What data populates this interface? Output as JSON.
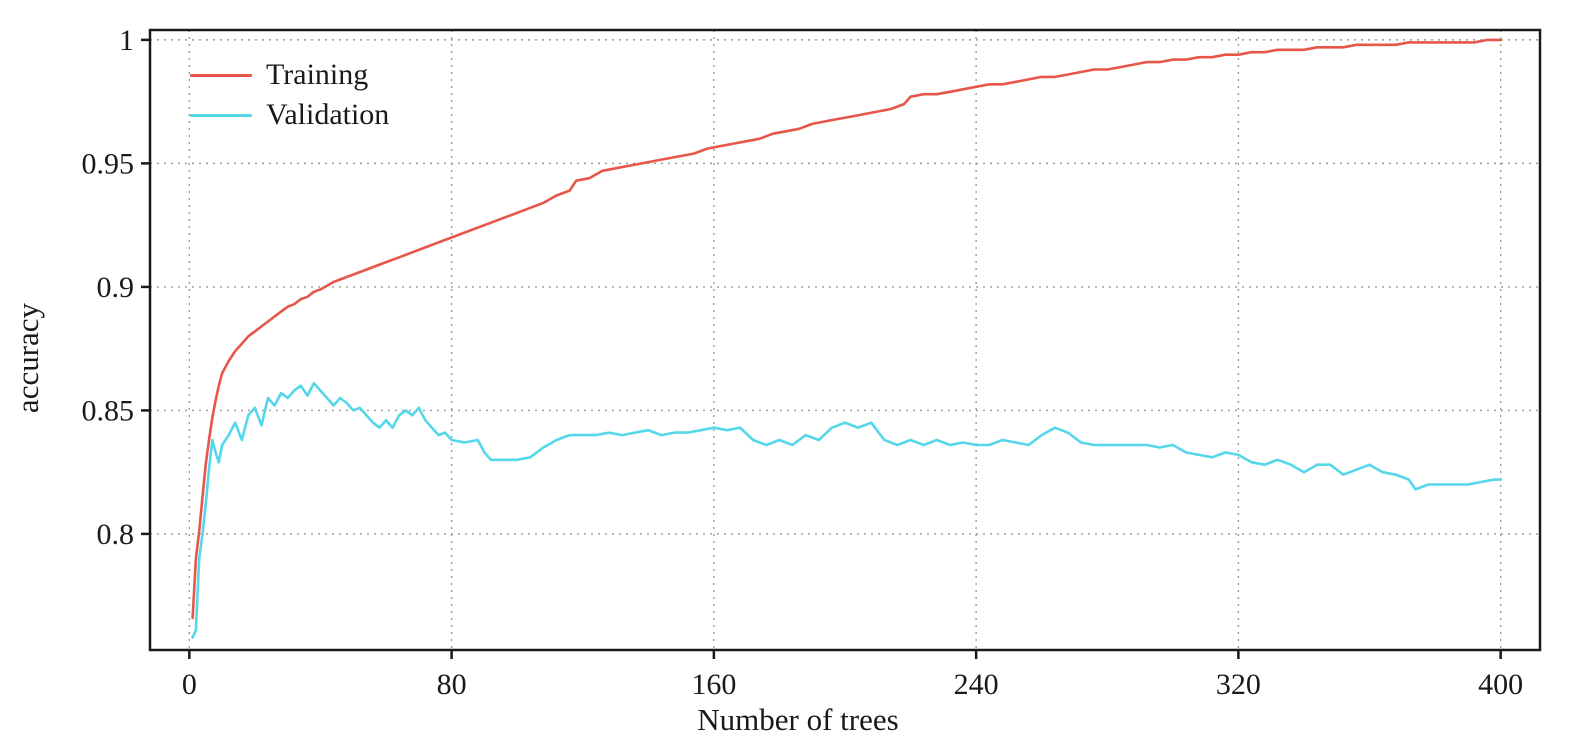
{
  "chart_data": {
    "type": "line",
    "title": "",
    "xlabel": "Number of trees",
    "ylabel": "accuracy",
    "xlim": [
      -12,
      412
    ],
    "ylim": [
      0.753,
      1.004
    ],
    "grid": "dotted",
    "legend_position": "top-left-inside",
    "frame_color": "#1a1a1a",
    "grid_color": "#9a9a9a",
    "xticks": {
      "values": [
        0,
        80,
        160,
        240,
        320,
        400
      ],
      "labels": [
        "0",
        "80",
        "160",
        "240",
        "320",
        "400"
      ]
    },
    "yticks": {
      "values": [
        0.8,
        0.85,
        0.9,
        0.95,
        1.0
      ],
      "labels": [
        "0.8",
        "0.85",
        "0.9",
        "0.95",
        "1"
      ]
    },
    "series": [
      {
        "name": "Training",
        "color": "#e8564a",
        "points": [
          [
            1,
            0.766
          ],
          [
            2,
            0.79
          ],
          [
            3,
            0.801
          ],
          [
            4,
            0.815
          ],
          [
            5,
            0.828
          ],
          [
            6,
            0.838
          ],
          [
            7,
            0.847
          ],
          [
            8,
            0.854
          ],
          [
            9,
            0.86
          ],
          [
            10,
            0.865
          ],
          [
            12,
            0.87
          ],
          [
            14,
            0.874
          ],
          [
            16,
            0.877
          ],
          [
            18,
            0.88
          ],
          [
            20,
            0.882
          ],
          [
            22,
            0.884
          ],
          [
            24,
            0.886
          ],
          [
            26,
            0.888
          ],
          [
            28,
            0.89
          ],
          [
            30,
            0.892
          ],
          [
            32,
            0.893
          ],
          [
            34,
            0.895
          ],
          [
            36,
            0.896
          ],
          [
            38,
            0.898
          ],
          [
            40,
            0.899
          ],
          [
            44,
            0.902
          ],
          [
            48,
            0.904
          ],
          [
            52,
            0.906
          ],
          [
            56,
            0.908
          ],
          [
            60,
            0.91
          ],
          [
            64,
            0.912
          ],
          [
            68,
            0.914
          ],
          [
            72,
            0.916
          ],
          [
            76,
            0.918
          ],
          [
            80,
            0.92
          ],
          [
            84,
            0.922
          ],
          [
            88,
            0.924
          ],
          [
            92,
            0.926
          ],
          [
            96,
            0.928
          ],
          [
            100,
            0.93
          ],
          [
            104,
            0.932
          ],
          [
            108,
            0.934
          ],
          [
            112,
            0.937
          ],
          [
            116,
            0.939
          ],
          [
            118,
            0.943
          ],
          [
            122,
            0.944
          ],
          [
            126,
            0.947
          ],
          [
            130,
            0.948
          ],
          [
            134,
            0.949
          ],
          [
            138,
            0.95
          ],
          [
            142,
            0.951
          ],
          [
            146,
            0.952
          ],
          [
            150,
            0.953
          ],
          [
            154,
            0.954
          ],
          [
            158,
            0.956
          ],
          [
            162,
            0.957
          ],
          [
            166,
            0.958
          ],
          [
            170,
            0.959
          ],
          [
            174,
            0.96
          ],
          [
            178,
            0.962
          ],
          [
            182,
            0.963
          ],
          [
            186,
            0.964
          ],
          [
            190,
            0.966
          ],
          [
            194,
            0.967
          ],
          [
            198,
            0.968
          ],
          [
            202,
            0.969
          ],
          [
            206,
            0.97
          ],
          [
            210,
            0.971
          ],
          [
            214,
            0.972
          ],
          [
            218,
            0.974
          ],
          [
            220,
            0.977
          ],
          [
            224,
            0.978
          ],
          [
            228,
            0.978
          ],
          [
            232,
            0.979
          ],
          [
            236,
            0.98
          ],
          [
            240,
            0.981
          ],
          [
            244,
            0.982
          ],
          [
            248,
            0.982
          ],
          [
            252,
            0.983
          ],
          [
            256,
            0.984
          ],
          [
            260,
            0.985
          ],
          [
            264,
            0.985
          ],
          [
            268,
            0.986
          ],
          [
            272,
            0.987
          ],
          [
            276,
            0.988
          ],
          [
            280,
            0.988
          ],
          [
            284,
            0.989
          ],
          [
            288,
            0.99
          ],
          [
            292,
            0.991
          ],
          [
            296,
            0.991
          ],
          [
            300,
            0.992
          ],
          [
            304,
            0.992
          ],
          [
            308,
            0.993
          ],
          [
            312,
            0.993
          ],
          [
            316,
            0.994
          ],
          [
            320,
            0.994
          ],
          [
            324,
            0.995
          ],
          [
            328,
            0.995
          ],
          [
            332,
            0.996
          ],
          [
            336,
            0.996
          ],
          [
            340,
            0.996
          ],
          [
            344,
            0.997
          ],
          [
            348,
            0.997
          ],
          [
            352,
            0.997
          ],
          [
            356,
            0.998
          ],
          [
            360,
            0.998
          ],
          [
            364,
            0.998
          ],
          [
            368,
            0.998
          ],
          [
            372,
            0.999
          ],
          [
            376,
            0.999
          ],
          [
            380,
            0.999
          ],
          [
            384,
            0.999
          ],
          [
            388,
            0.999
          ],
          [
            392,
            0.999
          ],
          [
            396,
            1.0
          ],
          [
            400,
            1.0
          ]
        ]
      },
      {
        "name": "Validation",
        "color": "#55d7ea",
        "points": [
          [
            1,
            0.758
          ],
          [
            2,
            0.761
          ],
          [
            3,
            0.79
          ],
          [
            4,
            0.8
          ],
          [
            5,
            0.812
          ],
          [
            6,
            0.826
          ],
          [
            7,
            0.838
          ],
          [
            8,
            0.833
          ],
          [
            9,
            0.829
          ],
          [
            10,
            0.836
          ],
          [
            12,
            0.84
          ],
          [
            14,
            0.845
          ],
          [
            16,
            0.838
          ],
          [
            18,
            0.848
          ],
          [
            20,
            0.851
          ],
          [
            22,
            0.844
          ],
          [
            24,
            0.855
          ],
          [
            26,
            0.852
          ],
          [
            28,
            0.857
          ],
          [
            30,
            0.855
          ],
          [
            32,
            0.858
          ],
          [
            34,
            0.86
          ],
          [
            36,
            0.856
          ],
          [
            38,
            0.861
          ],
          [
            40,
            0.858
          ],
          [
            42,
            0.855
          ],
          [
            44,
            0.852
          ],
          [
            46,
            0.855
          ],
          [
            48,
            0.853
          ],
          [
            50,
            0.85
          ],
          [
            52,
            0.851
          ],
          [
            54,
            0.848
          ],
          [
            56,
            0.845
          ],
          [
            58,
            0.843
          ],
          [
            60,
            0.846
          ],
          [
            62,
            0.843
          ],
          [
            64,
            0.848
          ],
          [
            66,
            0.85
          ],
          [
            68,
            0.848
          ],
          [
            70,
            0.851
          ],
          [
            72,
            0.846
          ],
          [
            74,
            0.843
          ],
          [
            76,
            0.84
          ],
          [
            78,
            0.841
          ],
          [
            80,
            0.838
          ],
          [
            84,
            0.837
          ],
          [
            88,
            0.838
          ],
          [
            90,
            0.833
          ],
          [
            92,
            0.83
          ],
          [
            96,
            0.83
          ],
          [
            100,
            0.83
          ],
          [
            104,
            0.831
          ],
          [
            108,
            0.835
          ],
          [
            112,
            0.838
          ],
          [
            116,
            0.84
          ],
          [
            120,
            0.84
          ],
          [
            124,
            0.84
          ],
          [
            128,
            0.841
          ],
          [
            132,
            0.84
          ],
          [
            136,
            0.841
          ],
          [
            140,
            0.842
          ],
          [
            144,
            0.84
          ],
          [
            148,
            0.841
          ],
          [
            152,
            0.841
          ],
          [
            156,
            0.842
          ],
          [
            160,
            0.843
          ],
          [
            164,
            0.842
          ],
          [
            168,
            0.843
          ],
          [
            172,
            0.838
          ],
          [
            176,
            0.836
          ],
          [
            180,
            0.838
          ],
          [
            184,
            0.836
          ],
          [
            188,
            0.84
          ],
          [
            192,
            0.838
          ],
          [
            196,
            0.843
          ],
          [
            200,
            0.845
          ],
          [
            204,
            0.843
          ],
          [
            208,
            0.845
          ],
          [
            212,
            0.838
          ],
          [
            216,
            0.836
          ],
          [
            220,
            0.838
          ],
          [
            224,
            0.836
          ],
          [
            228,
            0.838
          ],
          [
            232,
            0.836
          ],
          [
            236,
            0.837
          ],
          [
            240,
            0.836
          ],
          [
            244,
            0.836
          ],
          [
            248,
            0.838
          ],
          [
            252,
            0.837
          ],
          [
            256,
            0.836
          ],
          [
            260,
            0.84
          ],
          [
            264,
            0.843
          ],
          [
            268,
            0.841
          ],
          [
            272,
            0.837
          ],
          [
            276,
            0.836
          ],
          [
            280,
            0.836
          ],
          [
            284,
            0.836
          ],
          [
            288,
            0.836
          ],
          [
            292,
            0.836
          ],
          [
            296,
            0.835
          ],
          [
            300,
            0.836
          ],
          [
            304,
            0.833
          ],
          [
            308,
            0.832
          ],
          [
            312,
            0.831
          ],
          [
            316,
            0.833
          ],
          [
            320,
            0.832
          ],
          [
            324,
            0.829
          ],
          [
            328,
            0.828
          ],
          [
            332,
            0.83
          ],
          [
            336,
            0.828
          ],
          [
            340,
            0.825
          ],
          [
            344,
            0.828
          ],
          [
            348,
            0.828
          ],
          [
            352,
            0.824
          ],
          [
            356,
            0.826
          ],
          [
            360,
            0.828
          ],
          [
            364,
            0.825
          ],
          [
            368,
            0.824
          ],
          [
            372,
            0.822
          ],
          [
            374,
            0.818
          ],
          [
            378,
            0.82
          ],
          [
            382,
            0.82
          ],
          [
            386,
            0.82
          ],
          [
            390,
            0.82
          ],
          [
            394,
            0.821
          ],
          [
            398,
            0.822
          ],
          [
            400,
            0.822
          ]
        ]
      }
    ]
  }
}
